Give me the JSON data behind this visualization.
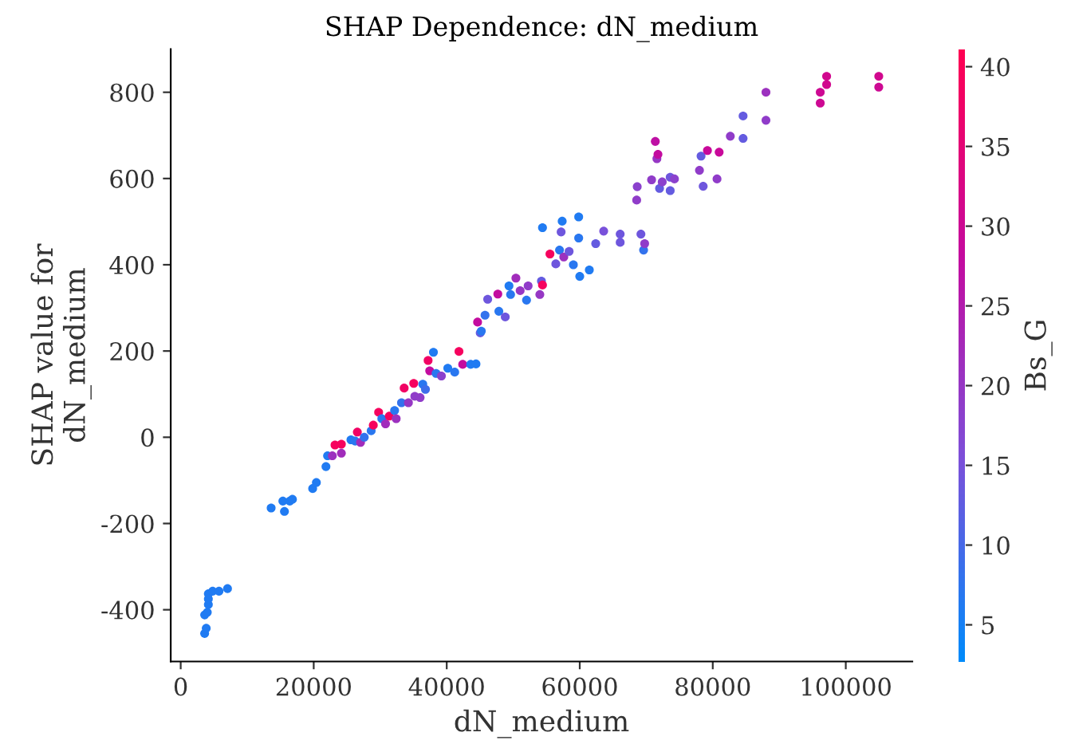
{
  "chart_data": {
    "type": "scatter",
    "title": "SHAP Dependence: dN_medium",
    "xlabel": "dN_medium",
    "ylabel": "SHAP value for\ndN_medium",
    "clabel": "Bs_G",
    "xlim": [
      -1500,
      110000
    ],
    "ylim": [
      -520,
      900
    ],
    "xticks": [
      0,
      20000,
      40000,
      60000,
      80000,
      100000
    ],
    "yticks": [
      -400,
      -200,
      0,
      200,
      400,
      600,
      800
    ],
    "clim": [
      2.7,
      41.1
    ],
    "cticks": [
      5,
      10,
      15,
      20,
      25,
      30,
      35,
      40
    ],
    "marker": "circle",
    "grid": false,
    "series": [
      {
        "x": [
          3600,
          3840,
          3600,
          4000,
          4160,
          4160,
          4800,
          5760,
          7040,
          4160,
          13600,
          15360,
          15600,
          16400,
          16800,
          19840,
          20400,
          21840,
          22080,
          22800,
          23200,
          24160,
          24160,
          25600,
          26240,
          26560,
          27040,
          27600,
          28640,
          28960,
          29760,
          30240,
          30800,
          31360,
          32160,
          32400,
          33200,
          33600,
          34240,
          35040,
          35200,
          36000,
          36400,
          36800,
          37200,
          37440,
          38000,
          38400,
          39200,
          40160,
          41200,
          41840,
          42400,
          43600,
          44400,
          44640,
          45040,
          45200,
          45760,
          46160,
          47680,
          47840,
          48800,
          49360,
          49600,
          50400,
          51040,
          52000,
          52240,
          54000,
          54240,
          54400,
          54400,
          55520,
          56400,
          56960,
          57200,
          57360,
          57600,
          58400,
          59040,
          59840,
          59840,
          60000,
          61440,
          62400,
          63600,
          66080,
          66080,
          68560,
          68640,
          69200,
          69600,
          69760,
          70800,
          71360,
          71600,
          71760,
          72000,
          72400,
          73600,
          73600,
          74240,
          78000,
          78240,
          78560,
          79200,
          80640,
          80960,
          82640,
          84560,
          84560,
          88000,
          88000,
          96160,
          96160,
          97120,
          97120,
          104960,
          104960
        ],
        "values": [
          -455,
          -443,
          -412,
          -406,
          -388,
          -363,
          -357,
          -357,
          -351,
          -375,
          -164,
          -148,
          -172,
          -148,
          -144,
          -119,
          -105,
          -68,
          -43,
          -43,
          -18,
          -16,
          -37,
          -6,
          -9,
          12,
          -12,
          0,
          15,
          28,
          58,
          43,
          31,
          49,
          62,
          43,
          80,
          114,
          80,
          125,
          95,
          92,
          123,
          111,
          178,
          154,
          197,
          148,
          142,
          160,
          151,
          199,
          169,
          169,
          170,
          267,
          242,
          246,
          283,
          320,
          332,
          292,
          279,
          351,
          331,
          369,
          340,
          318,
          351,
          331,
          362,
          353,
          486,
          425,
          402,
          434,
          476,
          501,
          418,
          431,
          400,
          511,
          462,
          373,
          388,
          449,
          478,
          471,
          452,
          550,
          581,
          471,
          434,
          449,
          597,
          686,
          646,
          656,
          577,
          592,
          572,
          603,
          599,
          619,
          652,
          582,
          665,
          599,
          661,
          698,
          745,
          693,
          800,
          735,
          800,
          775,
          837,
          818,
          837,
          812
        ],
        "cvalues": [
          6,
          6,
          6,
          6,
          6,
          6,
          6,
          6,
          6,
          6,
          6,
          6,
          6,
          6,
          6,
          6,
          6,
          6,
          6,
          21,
          39,
          39,
          22,
          6,
          7,
          38,
          22,
          8,
          7,
          39,
          39,
          7,
          22,
          39,
          7,
          21,
          8,
          38,
          20,
          39,
          19,
          19,
          7,
          9,
          38,
          28,
          6,
          7,
          18,
          6,
          7,
          39,
          28,
          6,
          6,
          28,
          13,
          7,
          8,
          14,
          28,
          7,
          14,
          6,
          7,
          22,
          20,
          7,
          19,
          20,
          13,
          39,
          6,
          39,
          14,
          7,
          14,
          6,
          21,
          14,
          7,
          6,
          7,
          6,
          6,
          13,
          15,
          14,
          14,
          19,
          18,
          14,
          8,
          19,
          19,
          27,
          20,
          28,
          13,
          18,
          13,
          14,
          18,
          19,
          13,
          14,
          29,
          19,
          29,
          19,
          13,
          13,
          21,
          19,
          30,
          30,
          31,
          31,
          31,
          30
        ]
      }
    ]
  }
}
